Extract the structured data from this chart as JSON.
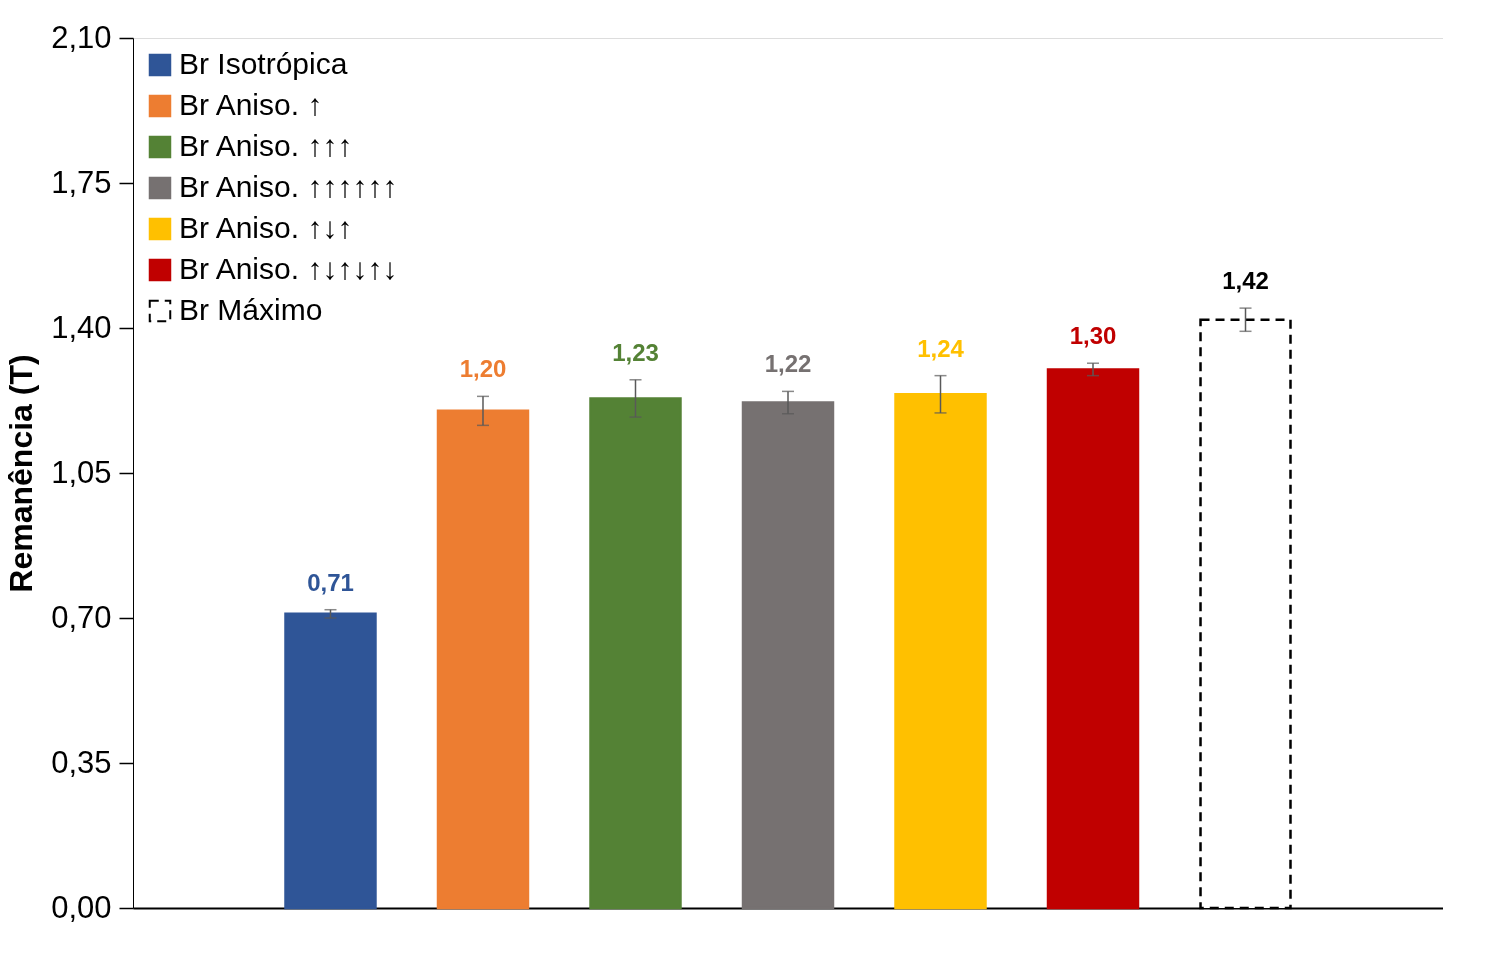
{
  "chart_data": {
    "type": "bar",
    "ylabel": "Remanência (T)",
    "categories": [
      null,
      null,
      null,
      null,
      null,
      null,
      null,
      null,
      null
    ],
    "series": [
      {
        "name": "Br Isotrópica",
        "color": "#2f5597",
        "values": [
          null,
          0.71,
          null,
          null,
          null,
          null,
          null,
          null,
          null
        ],
        "errors": [
          null,
          0.01,
          null,
          null,
          null,
          null,
          null,
          null,
          null
        ],
        "value_labels": [
          null,
          "0,71",
          null,
          null,
          null,
          null,
          null,
          null,
          null
        ]
      },
      {
        "name": "Br Aniso. ↑",
        "color": "#ed7d31",
        "values": [
          null,
          null,
          1.2,
          null,
          null,
          null,
          null,
          null,
          null
        ],
        "errors": [
          null,
          null,
          0.035,
          null,
          null,
          null,
          null,
          null,
          null
        ],
        "value_labels": [
          null,
          null,
          "1,20",
          null,
          null,
          null,
          null,
          null,
          null
        ]
      },
      {
        "name": "Br Aniso. ↑↑↑",
        "color": "#548235",
        "values": [
          null,
          null,
          null,
          1.23,
          null,
          null,
          null,
          null,
          null
        ],
        "errors": [
          null,
          null,
          null,
          0.045,
          null,
          null,
          null,
          null,
          null
        ],
        "value_labels": [
          null,
          null,
          null,
          "1,23",
          null,
          null,
          null,
          null,
          null
        ]
      },
      {
        "name": "Br Aniso. ↑↑↑↑↑↑",
        "color": "#767171",
        "values": [
          null,
          null,
          null,
          null,
          1.22,
          null,
          null,
          null,
          null
        ],
        "errors": [
          null,
          null,
          null,
          null,
          0.027,
          null,
          null,
          null,
          null
        ],
        "value_labels": [
          null,
          null,
          null,
          null,
          "1,22",
          null,
          null,
          null,
          null
        ]
      },
      {
        "name": "Br Aniso. ↑↓↑",
        "color": "#ffc000",
        "values": [
          null,
          null,
          null,
          null,
          null,
          1.24,
          null,
          null,
          null
        ],
        "errors": [
          null,
          null,
          null,
          null,
          null,
          0.045,
          null,
          null,
          null
        ],
        "value_labels": [
          null,
          null,
          null,
          null,
          null,
          "1,24",
          null,
          null,
          null
        ]
      },
      {
        "name": "Br Aniso. ↑↓↑↓↑↓",
        "color": "#c00000",
        "values": [
          null,
          null,
          null,
          null,
          null,
          null,
          1.3,
          null,
          null
        ],
        "errors": [
          null,
          null,
          null,
          null,
          null,
          null,
          0.015,
          null,
          null
        ],
        "value_labels": [
          null,
          null,
          null,
          null,
          null,
          null,
          "1,30",
          null,
          null
        ]
      },
      {
        "name": "Br Máximo",
        "color": "#000000",
        "line_style": "dashed",
        "values": [
          null,
          null,
          null,
          null,
          null,
          null,
          null,
          1.42,
          null
        ],
        "errors": [
          null,
          null,
          null,
          null,
          null,
          null,
          null,
          0.028,
          null
        ],
        "value_labels": [
          null,
          null,
          null,
          null,
          null,
          null,
          null,
          "1,42",
          null
        ]
      }
    ],
    "ylim": [
      0,
      2.1
    ],
    "yticks": [
      {
        "value": 0,
        "label": "0,00"
      },
      {
        "value": 0.35,
        "label": "0,35"
      },
      {
        "value": 0.7,
        "label": "0,70"
      },
      {
        "value": 1.05,
        "label": "1,05"
      },
      {
        "value": 1.4,
        "label": "1,40"
      },
      {
        "value": 1.75,
        "label": "1,75"
      },
      {
        "value": 2.1,
        "label": "2,10"
      }
    ],
    "tick_labels": "y",
    "legend": "top left",
    "grid": false
  }
}
